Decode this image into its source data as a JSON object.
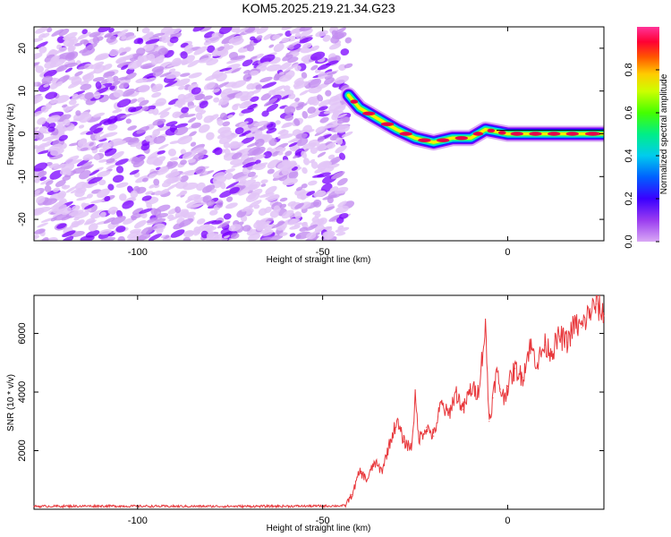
{
  "title": "KOM5.2025.219.21.34.G23",
  "colors": {
    "snr_line": "#e8383c",
    "ridge_core": "#e8004a",
    "noise_blob": "#9a3cf0",
    "frame": "#000000"
  },
  "chart_data": [
    {
      "type": "heatmap",
      "title": "KOM5.2025.219.21.34.G23",
      "xlabel": "Height of straight line (km)",
      "ylabel": "Frequency (Hz)",
      "xlim": [
        -128,
        26
      ],
      "ylim": [
        -25,
        25
      ],
      "xticks": [
        -100,
        -50,
        0
      ],
      "xtick_labels": [
        "-100",
        "-50",
        "0"
      ],
      "yticks": [
        -20,
        -10,
        0,
        10,
        20
      ],
      "ytick_labels": [
        "-20",
        "-10",
        "0",
        "10",
        "20"
      ],
      "grid": false,
      "noise_region_x": [
        -128,
        -43
      ],
      "ridge": {
        "x": [
          -43,
          -40,
          -35,
          -30,
          -25,
          -20,
          -15,
          -10,
          -6,
          -3,
          0,
          5,
          10,
          15,
          20,
          26
        ],
        "y": [
          9,
          6,
          3.5,
          1,
          -1,
          -2,
          -1,
          -1,
          1,
          0.5,
          0,
          0,
          0,
          0,
          0,
          0
        ]
      },
      "colorbar": {
        "label": "Normalized spectral amplitude",
        "range": [
          0,
          1
        ],
        "ticks": [
          0,
          0.2,
          0.4,
          0.6,
          0.8
        ],
        "tick_labels": [
          "0.0",
          "0.2",
          "0.4",
          "0.6",
          "0.8"
        ],
        "stops": [
          "#d9a8f5",
          "#7a00ff",
          "#0000ff",
          "#00bfff",
          "#00ff66",
          "#66ff00",
          "#ffff00",
          "#ff8800",
          "#ff0044",
          "#ff3399"
        ]
      }
    },
    {
      "type": "line",
      "xlabel": "Height of straight line (km)",
      "ylabel": "SNR (10 * v/v)",
      "xlim": [
        -128,
        26
      ],
      "ylim": [
        0,
        7300
      ],
      "xticks": [
        -100,
        -50,
        0
      ],
      "xtick_labels": [
        "-100",
        "-50",
        "0"
      ],
      "yticks": [
        2000,
        4000,
        6000
      ],
      "ytick_labels": [
        "2000",
        "4000",
        "6000"
      ],
      "grid": false,
      "series": [
        {
          "name": "SNR",
          "x": [
            -128,
            -110,
            -90,
            -70,
            -50,
            -44,
            -42,
            -40,
            -38,
            -36,
            -34,
            -32,
            -30,
            -28,
            -26,
            -25,
            -24,
            -22,
            -20,
            -18,
            -16,
            -14,
            -12,
            -10,
            -8,
            -6,
            -5,
            -4,
            -3,
            -2,
            -1,
            0,
            2,
            4,
            6,
            8,
            10,
            12,
            14,
            16,
            18,
            20,
            22,
            24,
            26
          ],
          "y": [
            100,
            110,
            100,
            100,
            110,
            120,
            500,
            1300,
            1000,
            1600,
            1300,
            2200,
            3000,
            2300,
            2100,
            3800,
            2400,
            2800,
            2500,
            3600,
            3200,
            4000,
            3400,
            4100,
            4000,
            6200,
            3000,
            3800,
            4700,
            4100,
            3800,
            4200,
            4800,
            4500,
            5600,
            5000,
            5600,
            5400,
            5900,
            5700,
            6300,
            6200,
            6700,
            7000,
            6600
          ]
        }
      ]
    }
  ]
}
